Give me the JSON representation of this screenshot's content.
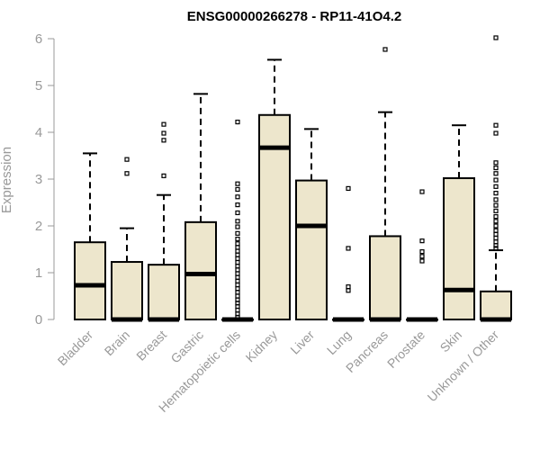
{
  "chart_data": {
    "type": "box",
    "title": "ENSG00000266278 - RP11-41O4.2",
    "xlabel": "",
    "ylabel": "Expression",
    "ylim": [
      0,
      6
    ],
    "yticks": [
      0,
      1,
      2,
      3,
      4,
      5,
      6
    ],
    "box_fill": "#ede6cc",
    "box_stroke": "#000000",
    "categories": [
      "Bladder",
      "Brain",
      "Breast",
      "Gastric",
      "Hematopoietic cells",
      "Kidney",
      "Liver",
      "Lung",
      "Pancreas",
      "Prostate",
      "Skin",
      "Unknown / Other"
    ],
    "boxes": [
      {
        "q1": 0,
        "median": 0.73,
        "q3": 1.65,
        "whisker_low": 0,
        "whisker_high": 3.55,
        "outliers": []
      },
      {
        "q1": 0,
        "median": 0,
        "q3": 1.23,
        "whisker_low": 0,
        "whisker_high": 1.95,
        "outliers": [
          3.12,
          3.42
        ]
      },
      {
        "q1": 0,
        "median": 0,
        "q3": 1.17,
        "whisker_low": 0,
        "whisker_high": 2.66,
        "outliers": [
          3.07,
          3.83,
          3.98,
          4.17
        ]
      },
      {
        "q1": 0,
        "median": 0.97,
        "q3": 2.08,
        "whisker_low": 0,
        "whisker_high": 4.82,
        "outliers": []
      },
      {
        "q1": 0,
        "median": 0,
        "q3": 0,
        "whisker_low": 0,
        "whisker_high": 0,
        "outliers": [
          0.05,
          0.12,
          0.2,
          0.28,
          0.35,
          0.42,
          0.5,
          0.58,
          0.66,
          0.74,
          0.82,
          0.9,
          0.98,
          1.06,
          1.14,
          1.22,
          1.3,
          1.38,
          1.46,
          1.54,
          1.62,
          1.72,
          1.84,
          1.98,
          2.1,
          2.28,
          2.45,
          2.62,
          2.78,
          2.9,
          4.22
        ]
      },
      {
        "q1": 0,
        "median": 3.67,
        "q3": 4.37,
        "whisker_low": 0,
        "whisker_high": 5.55,
        "outliers": []
      },
      {
        "q1": 0,
        "median": 2.0,
        "q3": 2.97,
        "whisker_low": 0,
        "whisker_high": 4.07,
        "outliers": []
      },
      {
        "q1": 0,
        "median": 0,
        "q3": 0,
        "whisker_low": 0,
        "whisker_high": 0,
        "outliers": [
          0.62,
          0.7,
          1.52,
          2.8
        ]
      },
      {
        "q1": 0,
        "median": 0,
        "q3": 1.78,
        "whisker_low": 0,
        "whisker_high": 4.43,
        "outliers": [
          5.77
        ]
      },
      {
        "q1": 0,
        "median": 0,
        "q3": 0,
        "whisker_low": 0,
        "whisker_high": 0,
        "outliers": [
          1.25,
          1.35,
          1.45,
          1.68,
          2.73
        ]
      },
      {
        "q1": 0,
        "median": 0.63,
        "q3": 3.02,
        "whisker_low": 0,
        "whisker_high": 4.15,
        "outliers": []
      },
      {
        "q1": 0,
        "median": 0,
        "q3": 0.6,
        "whisker_low": 0,
        "whisker_high": 1.48,
        "outliers": [
          1.52,
          1.58,
          1.66,
          1.74,
          1.82,
          1.9,
          2.0,
          2.1,
          2.2,
          2.32,
          2.44,
          2.56,
          2.7,
          2.84,
          2.98,
          3.12,
          3.24,
          3.35,
          3.98,
          4.15,
          6.02
        ]
      }
    ]
  }
}
